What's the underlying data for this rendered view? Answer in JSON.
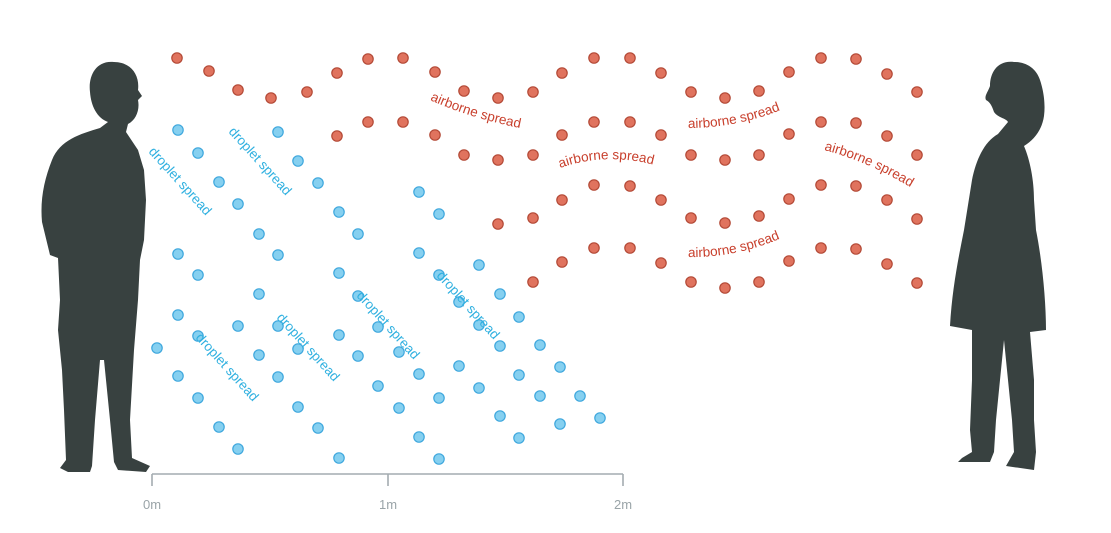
{
  "colors": {
    "droplet": "#86d0f0",
    "droplet_stroke": "#3ea7dd",
    "droplet_text": "#2fb0e0",
    "airborne": "#e0735e",
    "airborne_stroke": "#b34936",
    "airborne_text": "#c83f2c",
    "silhouette": "#384140",
    "axis": "#a3acb0"
  },
  "icons": {
    "left": "standing-man-silhouette-icon",
    "right": "standing-woman-silhouette-icon"
  },
  "labels": {
    "droplet": "droplet spread",
    "airborne": "airborne spread"
  },
  "axis": {
    "unit": "m",
    "ticks": [
      "0m",
      "1m",
      "2m"
    ]
  }
}
